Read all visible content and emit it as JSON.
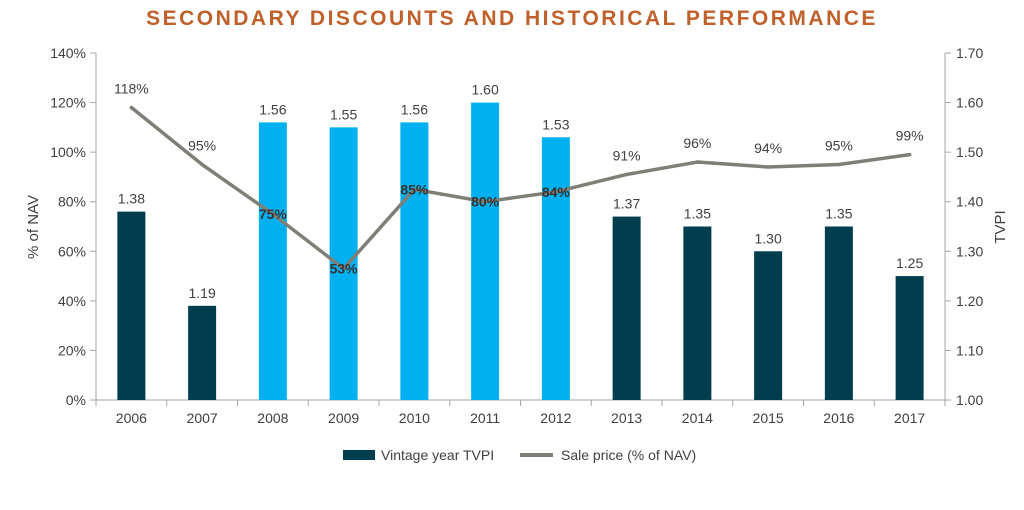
{
  "chart_data": {
    "type": "bar",
    "title": "SECONDARY DISCOUNTS AND HISTORICAL PERFORMANCE",
    "categories": [
      "2006",
      "2007",
      "2008",
      "2009",
      "2010",
      "2011",
      "2012",
      "2013",
      "2014",
      "2015",
      "2016",
      "2017"
    ],
    "y_left": {
      "label": "% of NAV",
      "min": 0,
      "max": 140,
      "ticks": [
        "0%",
        "20%",
        "40%",
        "60%",
        "80%",
        "100%",
        "120%",
        "140%"
      ]
    },
    "y_right": {
      "label": "TVPI",
      "min": 1.0,
      "max": 1.7,
      "ticks": [
        "1.00",
        "1.10",
        "1.20",
        "1.30",
        "1.40",
        "1.50",
        "1.60",
        "1.70"
      ]
    },
    "series": [
      {
        "name": "Vintage year TVPI",
        "type": "bar",
        "axis": "right",
        "values": [
          1.38,
          1.19,
          1.56,
          1.55,
          1.56,
          1.6,
          1.53,
          1.37,
          1.35,
          1.3,
          1.35,
          1.25
        ],
        "labels": [
          "1.38",
          "1.19",
          "1.56",
          "1.55",
          "1.56",
          "1.60",
          "1.53",
          "1.37",
          "1.35",
          "1.30",
          "1.35",
          "1.25"
        ],
        "highlight": [
          false,
          false,
          true,
          true,
          true,
          true,
          true,
          false,
          false,
          false,
          false,
          false
        ]
      },
      {
        "name": "Sale price (% of NAV)",
        "type": "line",
        "axis": "left",
        "values": [
          118,
          95,
          75,
          53,
          85,
          80,
          84,
          91,
          96,
          94,
          95,
          99
        ],
        "labels": [
          "118%",
          "95%",
          "75%",
          "53%",
          "85%",
          "80%",
          "84%",
          "91%",
          "96%",
          "94%",
          "95%",
          "99%"
        ]
      }
    ],
    "colors": {
      "title": "#C0602A",
      "bar_dark": "#003D4F",
      "bar_light": "#00B0F0",
      "line": "#7F7F77",
      "axis": "#A6A6A6",
      "text": "#404040"
    },
    "legend_position": "bottom",
    "grid": false
  }
}
